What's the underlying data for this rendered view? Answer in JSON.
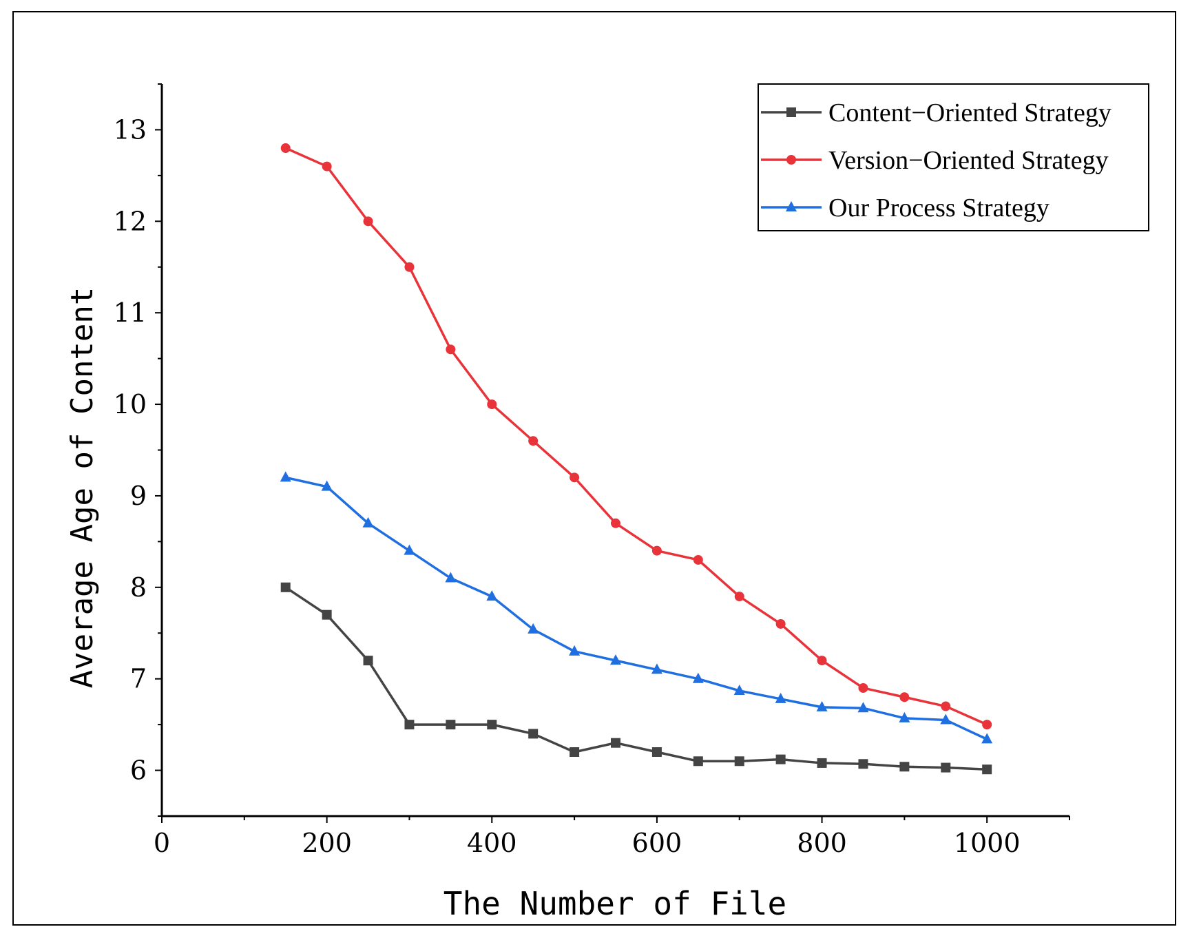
{
  "chart_data": {
    "type": "line",
    "title": "",
    "xlabel": "The Number of File",
    "ylabel": "Average Age of Content",
    "xlim": [
      0,
      1100
    ],
    "ylim": [
      5.5,
      13.5
    ],
    "xticks": [
      0,
      200,
      400,
      600,
      800,
      1000
    ],
    "yticks": [
      6,
      7,
      8,
      9,
      10,
      11,
      12,
      13
    ],
    "x": [
      150,
      200,
      250,
      300,
      350,
      400,
      450,
      500,
      550,
      600,
      650,
      700,
      750,
      800,
      850,
      900,
      950,
      1000
    ],
    "legend_position": "top-right",
    "grid": false,
    "series": [
      {
        "name": "Content−Oriented Strategy",
        "color": "#444444",
        "marker": "square",
        "values": [
          8.0,
          7.7,
          7.2,
          6.5,
          6.5,
          6.5,
          6.4,
          6.2,
          6.3,
          6.2,
          6.1,
          6.1,
          6.12,
          6.08,
          6.07,
          6.04,
          6.03,
          6.01
        ]
      },
      {
        "name": "Version−Oriented Strategy",
        "color": "#e8333a",
        "marker": "circle",
        "values": [
          12.8,
          12.6,
          12.0,
          11.5,
          10.6,
          10.0,
          9.6,
          9.2,
          8.7,
          8.4,
          8.3,
          7.9,
          7.6,
          7.2,
          6.9,
          6.8,
          6.7,
          6.5
        ]
      },
      {
        "name": "Our Process Strategy",
        "color": "#1f6fe0",
        "marker": "triangle",
        "values": [
          9.2,
          9.1,
          8.7,
          8.4,
          8.1,
          7.9,
          7.54,
          7.3,
          7.2,
          7.1,
          7.0,
          6.87,
          6.78,
          6.69,
          6.68,
          6.57,
          6.55,
          6.34
        ]
      }
    ]
  }
}
